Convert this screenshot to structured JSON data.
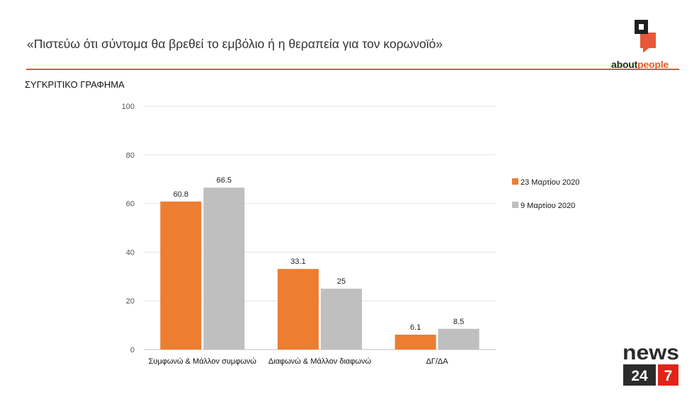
{
  "header": {
    "headline": "«Πιστεύω ότι σύντομα θα βρεθεί το εμβόλιο ή η θεραπεία για τον κορωνοϊό»",
    "subtitle": "ΣΥΓΚΡΙΤΙΚΟ ΓΡΑΦΗΜΑ"
  },
  "brand": {
    "name_part1": "about",
    "name_part2": "people",
    "accent_color": "#e8573a"
  },
  "news_logo": {
    "word": "news",
    "num1": "24",
    "num2": "7",
    "dark_color": "#2b2b2b",
    "red_color": "#e2231a"
  },
  "chart_data": {
    "type": "bar",
    "title": "ΣΥΓΚΡΙΤΙΚΟ ΓΡΑΦΗΜΑ",
    "xlabel": "",
    "ylabel": "",
    "categories": [
      "Συμφωνώ & Μάλλον συμφωνώ",
      "Διαφωνώ & Μάλλον διαφωνώ",
      "ΔΓ/ΔΑ"
    ],
    "series": [
      {
        "name": "23 Μαρτίου 2020",
        "values": [
          60.8,
          33.1,
          6.1
        ],
        "value_labels": [
          "60.8",
          "33.1",
          "6.1"
        ],
        "color": "#ed7d31"
      },
      {
        "name": "9 Μαρτίου 2020",
        "values": [
          66.5,
          25,
          8.5
        ],
        "value_labels": [
          "66.5",
          "25",
          "8.5"
        ],
        "color": "#bfbfbf"
      }
    ],
    "ylim": [
      0,
      100
    ],
    "yticks": [
      0,
      20,
      40,
      60,
      80,
      100
    ],
    "grid": true,
    "legend_position": "right"
  }
}
